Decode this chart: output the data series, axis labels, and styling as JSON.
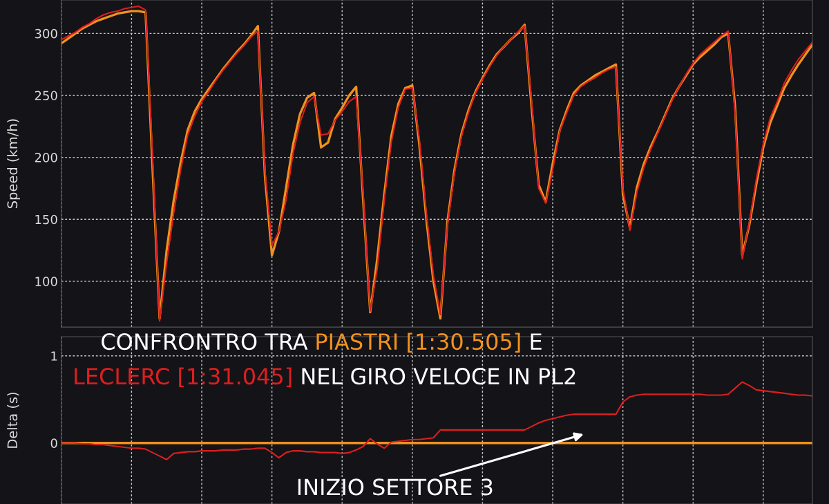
{
  "chart_data": [
    {
      "type": "line",
      "ylabel": "Speed (km/h)",
      "ylim": [
        63,
        327
      ],
      "yticks": [
        100,
        150,
        200,
        250,
        300
      ],
      "tick_labels": "y",
      "grid": true,
      "legend": false,
      "marker": "none",
      "line_style": "solid",
      "categories": [
        null,
        null,
        null,
        null,
        null,
        null,
        null,
        null,
        null,
        null,
        null,
        null,
        null,
        null,
        null,
        null,
        null,
        null,
        null,
        null,
        null,
        null,
        null,
        null,
        null,
        null,
        null,
        null,
        null,
        null,
        null,
        null,
        null,
        null,
        null,
        null,
        null,
        null,
        null,
        null,
        null,
        null,
        null,
        null,
        null,
        null,
        null,
        null,
        null,
        null,
        null,
        null,
        null,
        null,
        null,
        null,
        null,
        null,
        null,
        null,
        null,
        null,
        null,
        null,
        null,
        null,
        null,
        null,
        null,
        null,
        null,
        null,
        null,
        null,
        null,
        null,
        null,
        null,
        null,
        null,
        null,
        null,
        null,
        null,
        null,
        null,
        null,
        null,
        null,
        null,
        null,
        null,
        null,
        null,
        null,
        null,
        null,
        null,
        null,
        null,
        null,
        null,
        null,
        null,
        null,
        null,
        null,
        null
      ],
      "series": [
        {
          "color": "#f0921e",
          "values": [
            292,
            296,
            300,
            304,
            307,
            310,
            312,
            314,
            316,
            317,
            318,
            318,
            317,
            190,
            70,
            125,
            165,
            196,
            222,
            237,
            247,
            255,
            263,
            271,
            278,
            285,
            291,
            298,
            306,
            185,
            121,
            140,
            175,
            210,
            235,
            248,
            252,
            208,
            212,
            231,
            240,
            250,
            257,
            165,
            75,
            118,
            170,
            217,
            243,
            256,
            258,
            210,
            150,
            100,
            70,
            148,
            190,
            219,
            238,
            253,
            264,
            274,
            283,
            289,
            295,
            300,
            307,
            240,
            178,
            164,
            195,
            222,
            238,
            252,
            258,
            262,
            266,
            269,
            272,
            275,
            170,
            143,
            176,
            195,
            209,
            221,
            234,
            247,
            257,
            266,
            275,
            281,
            286,
            291,
            297,
            300,
            240,
            121,
            145,
            178,
            208,
            228,
            242,
            256,
            266,
            275,
            283,
            291
          ]
        },
        {
          "color": "#dc1f1f",
          "values": [
            295,
            298,
            301,
            305,
            308,
            312,
            315,
            317,
            318,
            320,
            321,
            322,
            319,
            200,
            68,
            115,
            155,
            190,
            218,
            233,
            245,
            253,
            262,
            270,
            277,
            284,
            290,
            297,
            302,
            190,
            129,
            140,
            165,
            203,
            228,
            244,
            249,
            218,
            219,
            230,
            237,
            245,
            249,
            170,
            76,
            110,
            165,
            212,
            240,
            255,
            256,
            215,
            155,
            105,
            73,
            145,
            187,
            217,
            236,
            252,
            263,
            273,
            282,
            289,
            295,
            301,
            306,
            245,
            175,
            163,
            190,
            221,
            236,
            250,
            257,
            261,
            264,
            268,
            271,
            273,
            175,
            141,
            172,
            192,
            207,
            220,
            233,
            246,
            257,
            267,
            276,
            283,
            288,
            293,
            298,
            302,
            235,
            118,
            147,
            182,
            211,
            232,
            245,
            260,
            270,
            279,
            286,
            293
          ]
        }
      ]
    },
    {
      "type": "line",
      "ylabel": "Delta (s)",
      "ylim": [
        -0.7,
        1.22
      ],
      "yticks": [
        0,
        1
      ],
      "tick_labels": "y",
      "grid": true,
      "legend": false,
      "marker": "none",
      "line_style": "solid",
      "annotations": [
        "CONFRONTRO TRA",
        "E",
        "NEL GIRO VELOCE IN PL2",
        "INIZIO SETTORE 3"
      ],
      "categories": [
        null,
        null,
        null,
        null,
        null,
        null,
        null,
        null,
        null,
        null,
        null,
        null,
        null,
        null,
        null,
        null,
        null,
        null,
        null,
        null,
        null,
        null,
        null,
        null,
        null,
        null,
        null,
        null,
        null,
        null,
        null,
        null,
        null,
        null,
        null,
        null,
        null,
        null,
        null,
        null,
        null,
        null,
        null,
        null,
        null,
        null,
        null,
        null,
        null,
        null,
        null,
        null,
        null,
        null,
        null,
        null,
        null,
        null,
        null,
        null,
        null,
        null,
        null,
        null,
        null,
        null,
        null,
        null,
        null,
        null,
        null,
        null,
        null,
        null,
        null,
        null,
        null,
        null,
        null,
        null,
        null,
        null,
        null,
        null,
        null,
        null,
        null,
        null,
        null,
        null,
        null,
        null,
        null,
        null,
        null,
        null,
        null,
        null,
        null,
        null,
        null,
        null,
        null,
        null,
        null,
        null,
        null,
        null
      ],
      "series": [
        {
          "name": "PIASTRI [1:30.505]",
          "color": "#f0921e",
          "values": [
            0,
            0,
            0,
            0,
            0,
            0,
            0,
            0,
            0,
            0,
            0,
            0,
            0,
            0,
            0,
            0,
            0,
            0,
            0,
            0,
            0,
            0,
            0,
            0,
            0,
            0,
            0,
            0,
            0,
            0,
            0,
            0,
            0,
            0,
            0,
            0,
            0,
            0,
            0,
            0,
            0,
            0,
            0,
            0,
            0,
            0,
            0,
            0,
            0,
            0,
            0,
            0,
            0,
            0,
            0,
            0,
            0,
            0,
            0,
            0,
            0,
            0,
            0,
            0,
            0,
            0,
            0,
            0,
            0,
            0,
            0,
            0,
            0,
            0,
            0,
            0,
            0,
            0,
            0,
            0,
            0,
            0,
            0,
            0,
            0,
            0,
            0,
            0,
            0,
            0,
            0,
            0,
            0,
            0,
            0,
            0,
            0,
            0,
            0,
            0,
            0,
            0,
            0,
            0,
            0,
            0,
            0,
            0
          ]
        },
        {
          "name": "LECLERC [1:31.045]",
          "color": "#dc1f1f",
          "values": [
            0,
            0,
            0,
            -0.01,
            -0.01,
            -0.02,
            -0.02,
            -0.03,
            -0.04,
            -0.05,
            -0.06,
            -0.06,
            -0.07,
            -0.11,
            -0.15,
            -0.19,
            -0.12,
            -0.11,
            -0.1,
            -0.1,
            -0.09,
            -0.09,
            -0.09,
            -0.08,
            -0.08,
            -0.08,
            -0.07,
            -0.07,
            -0.06,
            -0.06,
            -0.11,
            -0.17,
            -0.11,
            -0.09,
            -0.09,
            -0.1,
            -0.1,
            -0.11,
            -0.11,
            -0.11,
            -0.12,
            -0.11,
            -0.08,
            -0.04,
            0.05,
            -0.01,
            -0.06,
            0.01,
            0.02,
            0.03,
            0.04,
            0.04,
            0.05,
            0.06,
            0.15,
            0.15,
            0.15,
            0.15,
            0.15,
            0.15,
            0.15,
            0.15,
            0.15,
            0.15,
            0.15,
            0.15,
            0.15,
            0.19,
            0.23,
            0.26,
            0.28,
            0.3,
            0.32,
            0.33,
            0.33,
            0.33,
            0.33,
            0.33,
            0.33,
            0.33,
            0.47,
            0.53,
            0.55,
            0.56,
            0.56,
            0.56,
            0.56,
            0.56,
            0.56,
            0.56,
            0.56,
            0.56,
            0.55,
            0.55,
            0.55,
            0.56,
            0.63,
            0.7,
            0.66,
            0.61,
            0.6,
            0.59,
            0.58,
            0.57,
            0.56,
            0.55,
            0.55,
            0.54
          ]
        }
      ]
    }
  ]
}
